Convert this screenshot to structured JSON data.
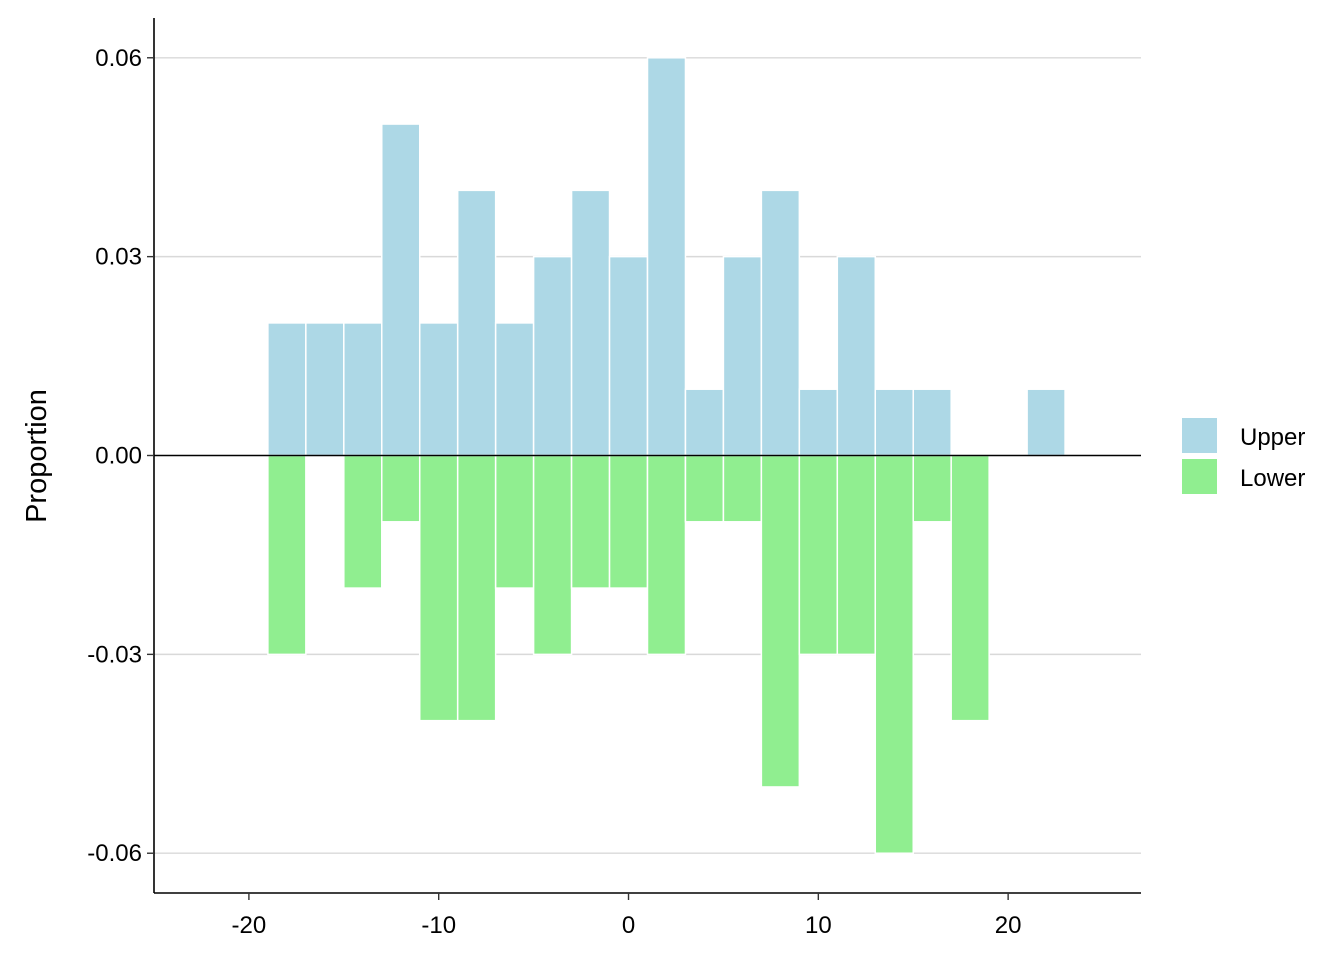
{
  "chart_data": {
    "type": "bar",
    "title": "",
    "xlabel": "",
    "ylabel": "Proportion",
    "xlim": [
      -25,
      27
    ],
    "ylim": [
      -0.066,
      0.066
    ],
    "bin_width": 2,
    "grid": "horizontal major gridlines",
    "legend_position": "right",
    "x_ticks": [
      -20,
      -10,
      0,
      10,
      20
    ],
    "x_tick_labels": [
      "-20",
      "-10",
      "0",
      "10",
      "20"
    ],
    "y_ticks": [
      -0.06,
      -0.03,
      0,
      0.03,
      0.06
    ],
    "y_tick_labels": [
      "-0.06",
      "-0.03",
      "0.00",
      "0.03",
      "0.06"
    ],
    "x": [
      -18,
      -16,
      -14,
      -12,
      -10,
      -8,
      -6,
      -4,
      -2,
      0,
      2,
      4,
      6,
      8,
      10,
      12,
      14,
      16,
      18,
      20,
      22
    ],
    "series": [
      {
        "name": "Upper",
        "color": "#add8e6",
        "values": [
          0.02,
          0.02,
          0.02,
          0.05,
          0.02,
          0.04,
          0.02,
          0.03,
          0.04,
          0.03,
          0.06,
          0.01,
          0.03,
          0.04,
          0.01,
          0.03,
          0.01,
          0.01,
          0,
          0,
          0.01
        ]
      },
      {
        "name": "Lower",
        "color": "#90ee90",
        "values": [
          -0.03,
          0,
          -0.02,
          -0.01,
          -0.04,
          -0.04,
          -0.02,
          -0.03,
          -0.02,
          -0.02,
          -0.03,
          -0.01,
          -0.01,
          -0.05,
          -0.03,
          -0.03,
          -0.06,
          -0.01,
          -0.04,
          0,
          0
        ]
      }
    ]
  }
}
